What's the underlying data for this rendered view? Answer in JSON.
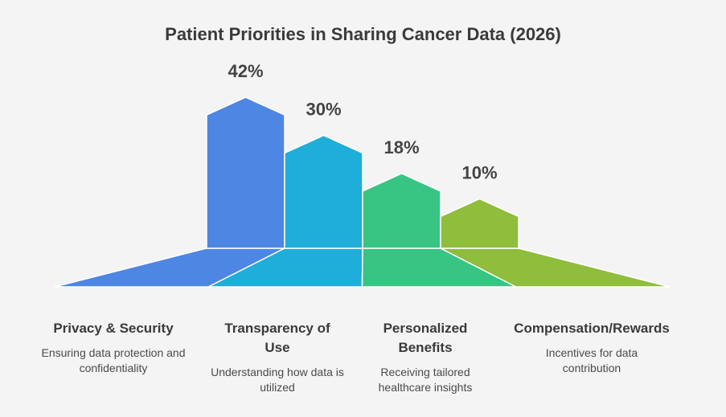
{
  "chart_data": {
    "type": "bar",
    "title": "Patient Priorities in Sharing Cancer Data (2026)",
    "categories": [
      "Privacy & Security",
      "Transparency of Use",
      "Personalized Benefits",
      "Compensation/Rewards"
    ],
    "values": [
      42,
      30,
      18,
      10
    ],
    "value_labels": [
      "42%",
      "30%",
      "18%",
      "10%"
    ],
    "descriptions": [
      "Ensuring data protection and confidentiality",
      "Understanding how data is utilized",
      "Receiving tailored healthcare insights",
      "Incentives for data contribution"
    ],
    "colors": [
      "#4e86e4",
      "#1faed9",
      "#38c583",
      "#8fbd3c"
    ],
    "grid": false,
    "legend": "none"
  }
}
